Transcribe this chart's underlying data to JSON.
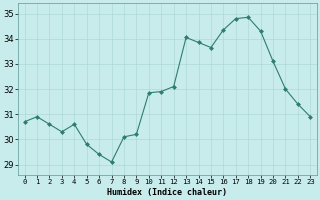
{
  "x": [
    0,
    1,
    2,
    3,
    4,
    5,
    6,
    7,
    8,
    9,
    10,
    11,
    12,
    13,
    14,
    15,
    16,
    17,
    18,
    19,
    20,
    21,
    22,
    23
  ],
  "y": [
    30.7,
    30.9,
    30.6,
    30.3,
    30.6,
    29.8,
    29.4,
    29.1,
    30.1,
    30.2,
    31.85,
    31.9,
    32.1,
    34.05,
    33.85,
    33.65,
    34.35,
    34.8,
    34.85,
    34.3,
    33.1,
    32.0,
    31.4,
    30.9
  ],
  "line_color": "#2e7d6e",
  "marker": "D",
  "marker_size": 2.0,
  "bg_color": "#c8ecec",
  "grid_color": "#b0d8d8",
  "xlabel": "Humidex (Indice chaleur)",
  "ylim": [
    28.6,
    35.4
  ],
  "xlim": [
    -0.5,
    23.5
  ],
  "yticks": [
    29,
    30,
    31,
    32,
    33,
    34,
    35
  ],
  "xtick_labels": [
    "0",
    "1",
    "2",
    "3",
    "4",
    "5",
    "6",
    "7",
    "8",
    "9",
    "10",
    "11",
    "12",
    "13",
    "14",
    "15",
    "16",
    "17",
    "18",
    "19",
    "20",
    "21",
    "22",
    "23"
  ],
  "xlabel_fontsize": 6.0,
  "ytick_fontsize": 6.0,
  "xtick_fontsize": 5.2
}
